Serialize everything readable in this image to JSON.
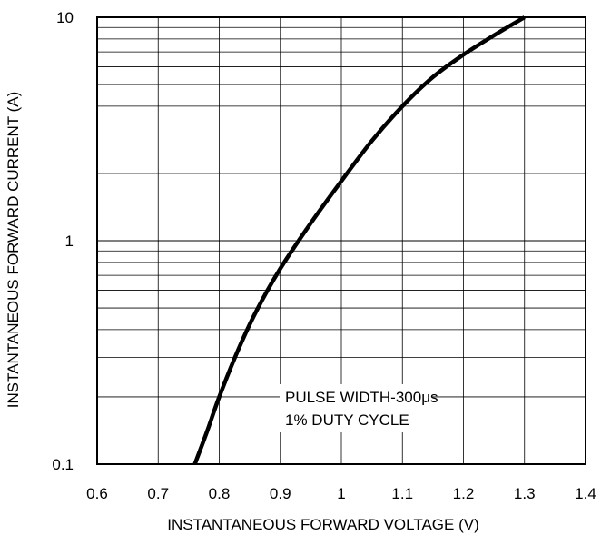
{
  "chart_data": {
    "type": "line",
    "title": "",
    "xlabel": "INSTANTANEOUS FORWARD VOLTAGE (V)",
    "ylabel": "INSTANTANEOUS FORWARD CURRENT (A)",
    "xlim": [
      0.6,
      1.4
    ],
    "ylim": [
      0.1,
      10
    ],
    "yscale": "log",
    "grid": true,
    "x_ticks": [
      "0.6",
      "0.7",
      "0.8",
      "0.9",
      "1",
      "1.1",
      "1.2",
      "1.3",
      "1.4"
    ],
    "y_ticks": [
      "0.1",
      "1",
      "10"
    ],
    "annotation": [
      "PULSE WIDTH-300μs",
      "1% DUTY CYCLE"
    ],
    "series": [
      {
        "x": [
          0.76,
          0.78,
          0.8,
          0.83,
          0.86,
          0.9,
          0.95,
          1.0,
          1.05,
          1.1,
          1.15,
          1.2,
          1.25,
          1.3
        ],
        "y": [
          0.1,
          0.14,
          0.2,
          0.32,
          0.48,
          0.75,
          1.2,
          1.85,
          2.8,
          4.0,
          5.4,
          6.8,
          8.3,
          10.0
        ]
      }
    ]
  }
}
